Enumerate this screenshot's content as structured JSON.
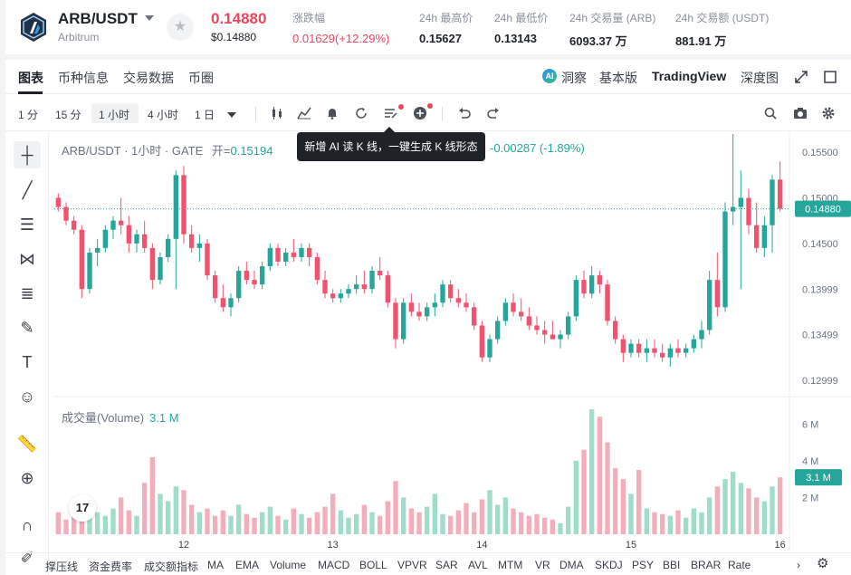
{
  "header": {
    "pair": "ARB/USDT",
    "pair_full": "Arbitrum",
    "favorite_icon": "star-icon",
    "price": "0.14880",
    "price_usd": "$0.14880",
    "stats": [
      {
        "label": "涨跌幅",
        "value": "0.01629(+12.29%)",
        "color": "red"
      },
      {
        "label": "24h 最高价",
        "value": "0.15627"
      },
      {
        "label": "24h 最低价",
        "value": "0.13143"
      },
      {
        "label": "24h 交易量 (ARB)",
        "value": "6093.37 万"
      },
      {
        "label": "24h 交易额 (USDT)",
        "value": "881.91 万"
      }
    ]
  },
  "tabs": [
    "图表",
    "币种信息",
    "交易数据",
    "币圈"
  ],
  "right_tabs": {
    "insight": "洞察",
    "basic": "基本版",
    "tradingview": "TradingView",
    "depth": "深度图"
  },
  "timeframes": [
    "1 分",
    "15 分",
    "1 小时",
    "4 小时",
    "1 日"
  ],
  "active_timeframe": "1 小时",
  "legend": {
    "title": "ARB/USDT · 1小时 · GATE",
    "open_label": "开=",
    "open_value": "0.15194",
    "change": "-0.00287 (-1.89%)"
  },
  "tooltip": "新增 AI 读 K 线，一键生成 K 线形态",
  "volume": {
    "label": "成交量(Volume)",
    "value": "3.1 M"
  },
  "tv_badge": "17",
  "indicators": [
    "撑压线",
    "资金费率",
    "成交额指标",
    "MA",
    "EMA",
    "Volume",
    "MACD",
    "BOLL",
    "VPVR",
    "SAR",
    "AVL",
    "MTM",
    "VR",
    "DMA",
    "SKDJ",
    "PSY",
    "BBI",
    "BRAR",
    "Rate"
  ],
  "colors": {
    "up": "#26a69a",
    "down": "#ef5370",
    "price_up_text": "#e8475f"
  },
  "chart_data": {
    "type": "candlestick",
    "price_axis": {
      "ticks": [
        "0.15500",
        "0.15000",
        "0.14500",
        "0.13999",
        "0.13499",
        "0.12999"
      ],
      "current": "0.14880",
      "range": [
        0.1282,
        0.1572
      ]
    },
    "volume_axis": {
      "ticks": [
        "6 M",
        "4 M",
        "2 M"
      ],
      "current": "3.1 M",
      "range": [
        0,
        7
      ]
    },
    "x_ticks": [
      "12",
      "13",
      "14",
      "15",
      "16"
    ],
    "candles": [
      {
        "o": 0.15,
        "h": 0.1505,
        "l": 0.1485,
        "c": 0.149,
        "v": 1.2
      },
      {
        "o": 0.149,
        "h": 0.1495,
        "l": 0.147,
        "c": 0.1475,
        "v": 0.8
      },
      {
        "o": 0.1475,
        "h": 0.148,
        "l": 0.146,
        "c": 0.1465,
        "v": 1.1
      },
      {
        "o": 0.1465,
        "h": 0.147,
        "l": 0.139,
        "c": 0.14,
        "v": 1.9
      },
      {
        "o": 0.14,
        "h": 0.1445,
        "l": 0.1395,
        "c": 0.144,
        "v": 1.5
      },
      {
        "o": 0.144,
        "h": 0.1455,
        "l": 0.1425,
        "c": 0.1445,
        "v": 1.2
      },
      {
        "o": 0.1445,
        "h": 0.147,
        "l": 0.144,
        "c": 0.1465,
        "v": 1.0
      },
      {
        "o": 0.1465,
        "h": 0.148,
        "l": 0.1455,
        "c": 0.1475,
        "v": 1.4
      },
      {
        "o": 0.1475,
        "h": 0.15,
        "l": 0.146,
        "c": 0.147,
        "v": 2.0
      },
      {
        "o": 0.147,
        "h": 0.148,
        "l": 0.144,
        "c": 0.145,
        "v": 1.3
      },
      {
        "o": 0.145,
        "h": 0.1465,
        "l": 0.144,
        "c": 0.146,
        "v": 1.0
      },
      {
        "o": 0.146,
        "h": 0.1475,
        "l": 0.144,
        "c": 0.1445,
        "v": 2.8
      },
      {
        "o": 0.1445,
        "h": 0.145,
        "l": 0.14,
        "c": 0.141,
        "v": 4.2
      },
      {
        "o": 0.141,
        "h": 0.144,
        "l": 0.1405,
        "c": 0.1435,
        "v": 2.2
      },
      {
        "o": 0.1435,
        "h": 0.146,
        "l": 0.143,
        "c": 0.1455,
        "v": 1.8
      },
      {
        "o": 0.1455,
        "h": 0.153,
        "l": 0.14,
        "c": 0.1525,
        "v": 2.6
      },
      {
        "o": 0.1525,
        "h": 0.1535,
        "l": 0.145,
        "c": 0.146,
        "v": 2.4
      },
      {
        "o": 0.146,
        "h": 0.147,
        "l": 0.144,
        "c": 0.1445,
        "v": 1.6
      },
      {
        "o": 0.1445,
        "h": 0.146,
        "l": 0.143,
        "c": 0.145,
        "v": 1.2
      },
      {
        "o": 0.145,
        "h": 0.1455,
        "l": 0.141,
        "c": 0.1415,
        "v": 1.4
      },
      {
        "o": 0.1415,
        "h": 0.142,
        "l": 0.1385,
        "c": 0.139,
        "v": 1.0
      },
      {
        "o": 0.139,
        "h": 0.1405,
        "l": 0.1375,
        "c": 0.138,
        "v": 1.3
      },
      {
        "o": 0.138,
        "h": 0.1395,
        "l": 0.137,
        "c": 0.139,
        "v": 1.0
      },
      {
        "o": 0.139,
        "h": 0.1425,
        "l": 0.1385,
        "c": 0.142,
        "v": 1.6
      },
      {
        "o": 0.142,
        "h": 0.143,
        "l": 0.1405,
        "c": 0.141,
        "v": 1.1
      },
      {
        "o": 0.141,
        "h": 0.142,
        "l": 0.14,
        "c": 0.1405,
        "v": 0.9
      },
      {
        "o": 0.1405,
        "h": 0.143,
        "l": 0.14,
        "c": 0.1425,
        "v": 1.2
      },
      {
        "o": 0.1425,
        "h": 0.145,
        "l": 0.142,
        "c": 0.1445,
        "v": 1.5
      },
      {
        "o": 0.1445,
        "h": 0.145,
        "l": 0.1425,
        "c": 0.143,
        "v": 1.0
      },
      {
        "o": 0.143,
        "h": 0.1445,
        "l": 0.1425,
        "c": 0.144,
        "v": 0.8
      },
      {
        "o": 0.144,
        "h": 0.1455,
        "l": 0.143,
        "c": 0.1435,
        "v": 1.4
      },
      {
        "o": 0.1435,
        "h": 0.145,
        "l": 0.143,
        "c": 0.1445,
        "v": 1.1
      },
      {
        "o": 0.1445,
        "h": 0.145,
        "l": 0.1425,
        "c": 0.1435,
        "v": 0.9
      },
      {
        "o": 0.1435,
        "h": 0.144,
        "l": 0.1405,
        "c": 0.141,
        "v": 1.2
      },
      {
        "o": 0.141,
        "h": 0.142,
        "l": 0.139,
        "c": 0.1395,
        "v": 1.5
      },
      {
        "o": 0.1395,
        "h": 0.14,
        "l": 0.1385,
        "c": 0.139,
        "v": 2.2
      },
      {
        "o": 0.139,
        "h": 0.14,
        "l": 0.1385,
        "c": 0.1395,
        "v": 1.3
      },
      {
        "o": 0.1395,
        "h": 0.1405,
        "l": 0.139,
        "c": 0.14,
        "v": 0.9
      },
      {
        "o": 0.14,
        "h": 0.1415,
        "l": 0.1395,
        "c": 0.1405,
        "v": 1.1
      },
      {
        "o": 0.1405,
        "h": 0.142,
        "l": 0.1395,
        "c": 0.14,
        "v": 1.6
      },
      {
        "o": 0.14,
        "h": 0.1425,
        "l": 0.1395,
        "c": 0.142,
        "v": 1.2
      },
      {
        "o": 0.142,
        "h": 0.1435,
        "l": 0.141,
        "c": 0.1415,
        "v": 1.0
      },
      {
        "o": 0.1415,
        "h": 0.142,
        "l": 0.138,
        "c": 0.1385,
        "v": 1.8
      },
      {
        "o": 0.1385,
        "h": 0.139,
        "l": 0.1335,
        "c": 0.1345,
        "v": 2.9
      },
      {
        "o": 0.1345,
        "h": 0.139,
        "l": 0.134,
        "c": 0.1385,
        "v": 2.0
      },
      {
        "o": 0.1385,
        "h": 0.1395,
        "l": 0.137,
        "c": 0.1375,
        "v": 1.4
      },
      {
        "o": 0.1375,
        "h": 0.1385,
        "l": 0.1365,
        "c": 0.137,
        "v": 1.2
      },
      {
        "o": 0.137,
        "h": 0.1385,
        "l": 0.1365,
        "c": 0.138,
        "v": 1.5
      },
      {
        "o": 0.138,
        "h": 0.1395,
        "l": 0.137,
        "c": 0.1385,
        "v": 2.2
      },
      {
        "o": 0.1385,
        "h": 0.141,
        "l": 0.138,
        "c": 0.1405,
        "v": 1.1
      },
      {
        "o": 0.1405,
        "h": 0.141,
        "l": 0.1385,
        "c": 0.139,
        "v": 1.0
      },
      {
        "o": 0.139,
        "h": 0.14,
        "l": 0.138,
        "c": 0.1385,
        "v": 1.3
      },
      {
        "o": 0.1385,
        "h": 0.1395,
        "l": 0.1375,
        "c": 0.138,
        "v": 1.7
      },
      {
        "o": 0.138,
        "h": 0.1385,
        "l": 0.1355,
        "c": 0.136,
        "v": 1.2
      },
      {
        "o": 0.136,
        "h": 0.1365,
        "l": 0.132,
        "c": 0.1325,
        "v": 1.9
      },
      {
        "o": 0.1325,
        "h": 0.135,
        "l": 0.132,
        "c": 0.1345,
        "v": 2.4
      },
      {
        "o": 0.1345,
        "h": 0.137,
        "l": 0.134,
        "c": 0.1365,
        "v": 1.6
      },
      {
        "o": 0.1365,
        "h": 0.139,
        "l": 0.136,
        "c": 0.1385,
        "v": 2.0
      },
      {
        "o": 0.1385,
        "h": 0.1395,
        "l": 0.137,
        "c": 0.1375,
        "v": 1.4
      },
      {
        "o": 0.1375,
        "h": 0.139,
        "l": 0.1365,
        "c": 0.137,
        "v": 1.2
      },
      {
        "o": 0.137,
        "h": 0.138,
        "l": 0.1355,
        "c": 0.136,
        "v": 1.0
      },
      {
        "o": 0.136,
        "h": 0.137,
        "l": 0.135,
        "c": 0.1355,
        "v": 1.1
      },
      {
        "o": 0.1355,
        "h": 0.1365,
        "l": 0.134,
        "c": 0.135,
        "v": 0.9
      },
      {
        "o": 0.135,
        "h": 0.1365,
        "l": 0.1345,
        "c": 0.1345,
        "v": 0.8
      },
      {
        "o": 0.1345,
        "h": 0.1355,
        "l": 0.1335,
        "c": 0.135,
        "v": 0.6
      },
      {
        "o": 0.135,
        "h": 0.1375,
        "l": 0.1345,
        "c": 0.137,
        "v": 1.5
      },
      {
        "o": 0.137,
        "h": 0.1415,
        "l": 0.1365,
        "c": 0.141,
        "v": 4.0
      },
      {
        "o": 0.141,
        "h": 0.142,
        "l": 0.139,
        "c": 0.1395,
        "v": 4.6
      },
      {
        "o": 0.1395,
        "h": 0.1425,
        "l": 0.139,
        "c": 0.1415,
        "v": 6.8
      },
      {
        "o": 0.1415,
        "h": 0.142,
        "l": 0.1395,
        "c": 0.1405,
        "v": 6.4
      },
      {
        "o": 0.1405,
        "h": 0.141,
        "l": 0.136,
        "c": 0.1365,
        "v": 5.0
      },
      {
        "o": 0.1365,
        "h": 0.137,
        "l": 0.134,
        "c": 0.1345,
        "v": 3.6
      },
      {
        "o": 0.1345,
        "h": 0.135,
        "l": 0.132,
        "c": 0.133,
        "v": 3.0
      },
      {
        "o": 0.133,
        "h": 0.1345,
        "l": 0.1325,
        "c": 0.134,
        "v": 2.2
      },
      {
        "o": 0.134,
        "h": 0.1345,
        "l": 0.1325,
        "c": 0.133,
        "v": 3.5
      },
      {
        "o": 0.133,
        "h": 0.1345,
        "l": 0.132,
        "c": 0.1335,
        "v": 1.4
      },
      {
        "o": 0.1335,
        "h": 0.1345,
        "l": 0.1325,
        "c": 0.133,
        "v": 1.2
      },
      {
        "o": 0.133,
        "h": 0.134,
        "l": 0.132,
        "c": 0.1325,
        "v": 1.1
      },
      {
        "o": 0.1325,
        "h": 0.134,
        "l": 0.1315,
        "c": 0.1335,
        "v": 1.0
      },
      {
        "o": 0.1335,
        "h": 0.1345,
        "l": 0.1325,
        "c": 0.133,
        "v": 1.3
      },
      {
        "o": 0.133,
        "h": 0.134,
        "l": 0.1325,
        "c": 0.1335,
        "v": 0.9
      },
      {
        "o": 0.1335,
        "h": 0.135,
        "l": 0.133,
        "c": 0.1345,
        "v": 1.4
      },
      {
        "o": 0.1345,
        "h": 0.1365,
        "l": 0.1335,
        "c": 0.1355,
        "v": 1.2
      },
      {
        "o": 0.1355,
        "h": 0.142,
        "l": 0.135,
        "c": 0.141,
        "v": 2.0
      },
      {
        "o": 0.141,
        "h": 0.144,
        "l": 0.137,
        "c": 0.138,
        "v": 2.6
      },
      {
        "o": 0.138,
        "h": 0.1495,
        "l": 0.1375,
        "c": 0.1485,
        "v": 3.0
      },
      {
        "o": 0.1485,
        "h": 0.157,
        "l": 0.147,
        "c": 0.149,
        "v": 3.4
      },
      {
        "o": 0.149,
        "h": 0.153,
        "l": 0.14,
        "c": 0.15,
        "v": 2.8
      },
      {
        "o": 0.15,
        "h": 0.151,
        "l": 0.146,
        "c": 0.147,
        "v": 2.5
      },
      {
        "o": 0.147,
        "h": 0.1495,
        "l": 0.144,
        "c": 0.1445,
        "v": 2.0
      },
      {
        "o": 0.1445,
        "h": 0.148,
        "l": 0.1435,
        "c": 0.147,
        "v": 1.8
      },
      {
        "o": 0.147,
        "h": 0.1525,
        "l": 0.144,
        "c": 0.152,
        "v": 2.6
      },
      {
        "o": 0.152,
        "h": 0.154,
        "l": 0.1485,
        "c": 0.1488,
        "v": 3.1
      }
    ]
  }
}
